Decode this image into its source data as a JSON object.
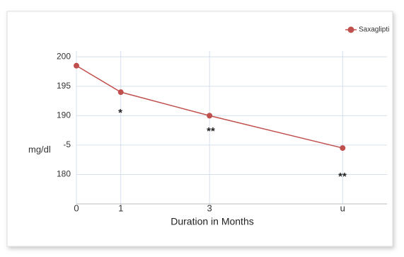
{
  "chart_data": {
    "type": "line",
    "x": [
      0,
      1,
      3,
      6
    ],
    "series": [
      {
        "name": "Saxaglipti",
        "color": "#c0504d",
        "values": [
          198.5,
          194,
          190,
          184.5
        ]
      }
    ],
    "xlim": [
      0,
      7
    ],
    "xticks": [
      0,
      1,
      3,
      {
        "value": 6,
        "label": "u"
      }
    ],
    "ylim": [
      175,
      201
    ],
    "yticks": [
      200,
      195,
      190,
      {
        "value": 185,
        "label": "-5"
      },
      180
    ],
    "y_label": "mg/dl",
    "x_label": "Duration in  Months",
    "annotations": [
      "*",
      "**",
      "**"
    ],
    "grid": true,
    "legend": "top-right"
  }
}
